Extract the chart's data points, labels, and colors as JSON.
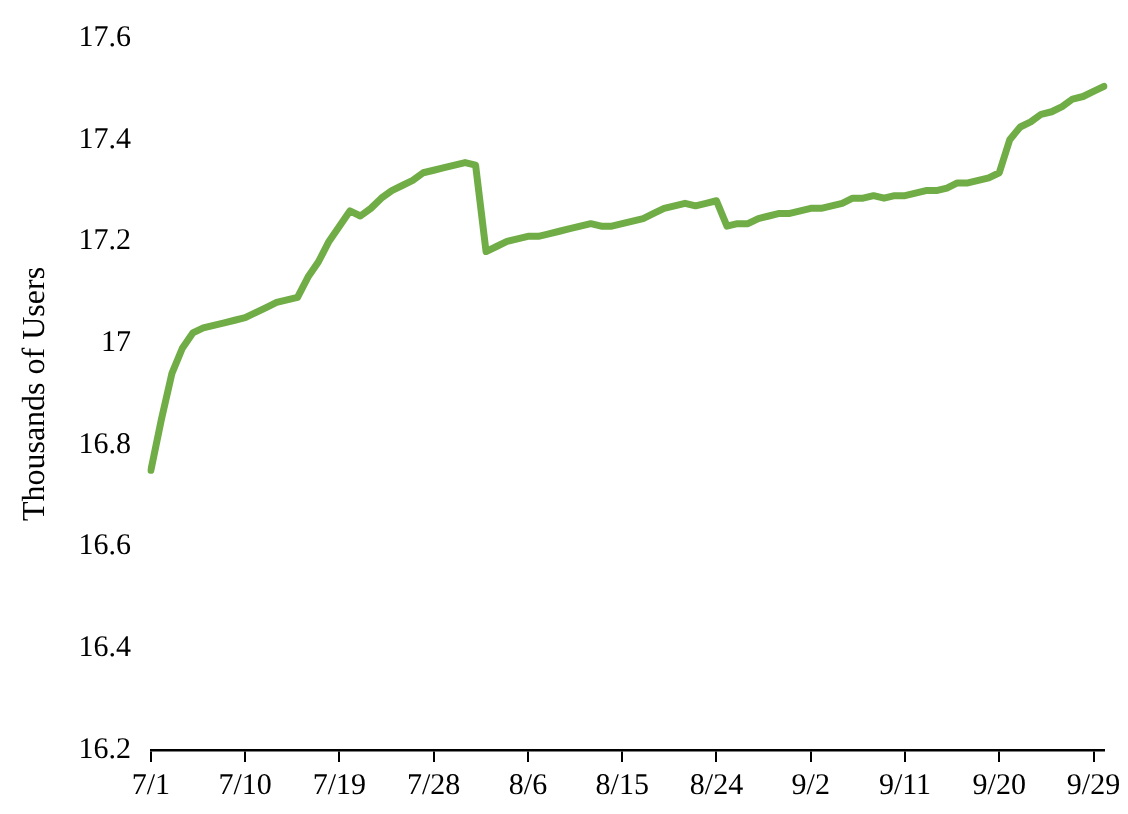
{
  "chart_data": {
    "type": "line",
    "ylabel": "Thousands of Users",
    "categories": [
      "7/1",
      null,
      null,
      null,
      null,
      null,
      null,
      null,
      null,
      "7/10",
      null,
      null,
      null,
      null,
      null,
      null,
      null,
      null,
      "7/19",
      null,
      null,
      null,
      null,
      null,
      null,
      null,
      null,
      "7/28",
      null,
      null,
      null,
      null,
      null,
      null,
      null,
      null,
      "8/6",
      null,
      null,
      null,
      null,
      null,
      null,
      null,
      null,
      "8/15",
      null,
      null,
      null,
      null,
      null,
      null,
      null,
      null,
      "8/24",
      null,
      null,
      null,
      null,
      null,
      null,
      null,
      null,
      "9/2",
      null,
      null,
      null,
      null,
      null,
      null,
      null,
      null,
      "9/11",
      null,
      null,
      null,
      null,
      null,
      null,
      null,
      null,
      "9/20",
      null,
      null,
      null,
      null,
      null,
      null,
      null,
      null,
      "9/29",
      null
    ],
    "series": [
      {
        "color": "#70ad47",
        "values": [
          16.75,
          16.85,
          16.94,
          16.99,
          17.02,
          17.03,
          17.035,
          17.04,
          17.045,
          17.05,
          17.06,
          17.07,
          17.08,
          17.085,
          17.09,
          17.13,
          17.16,
          17.2,
          17.23,
          17.26,
          17.25,
          17.265,
          17.285,
          17.3,
          17.31,
          17.32,
          17.335,
          17.34,
          17.345,
          17.35,
          17.355,
          17.35,
          17.18,
          17.19,
          17.2,
          17.205,
          17.21,
          17.21,
          17.215,
          17.22,
          17.225,
          17.23,
          17.235,
          17.23,
          17.23,
          17.235,
          17.24,
          17.245,
          17.255,
          17.265,
          17.27,
          17.275,
          17.27,
          17.275,
          17.28,
          17.23,
          17.235,
          17.235,
          17.245,
          17.25,
          17.255,
          17.255,
          17.26,
          17.265,
          17.265,
          17.27,
          17.275,
          17.285,
          17.285,
          17.29,
          17.285,
          17.29,
          17.29,
          17.295,
          17.3,
          17.3,
          17.305,
          17.315,
          17.315,
          17.32,
          17.325,
          17.335,
          17.4,
          17.425,
          17.435,
          17.45,
          17.455,
          17.465,
          17.48,
          17.485,
          17.495,
          17.505
        ]
      }
    ],
    "ylim": [
      16.2,
      17.6
    ],
    "yticks": [
      16.2,
      16.4,
      16.6,
      16.8,
      17,
      17.2,
      17.4,
      17.6
    ],
    "grid": false,
    "legend": false,
    "marker": "none",
    "line_style": "solid"
  }
}
